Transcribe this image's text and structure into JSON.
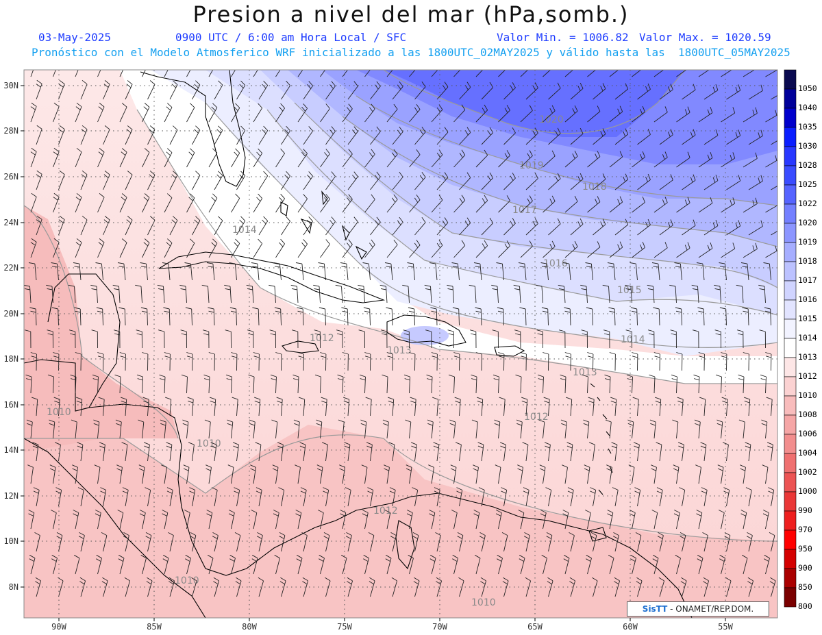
{
  "header": {
    "title": "Presion a nivel del mar (hPa,somb.)",
    "date": "03-May-2025",
    "time": "0900 UTC / 6:00 am Hora Local / SFC",
    "min": "Valor Min. = 1006.82",
    "max": "Valor Max. = 1020.59",
    "forecast": "Pronóstico con el Modelo Atmosferico WRF inicializado a las 1800UTC_02MAY2025 y válido hasta las  1800UTC_05MAY2025"
  },
  "axes": {
    "lat_labels": [
      "30N",
      "28N",
      "26N",
      "24N",
      "22N",
      "20N",
      "18N",
      "16N",
      "14N",
      "12N",
      "10N",
      "8N"
    ],
    "lon_labels": [
      "90W",
      "85W",
      "80W",
      "75W",
      "70W",
      "65W",
      "60W",
      "55W"
    ]
  },
  "colorbar": {
    "levels": [
      "1050",
      "1040",
      "1035",
      "1030",
      "1028",
      "1025",
      "1022",
      "1020",
      "1019",
      "1018",
      "1017",
      "1016",
      "1015",
      "1014",
      "1013",
      "1012",
      "1010",
      "1008",
      "1006",
      "1004",
      "1002",
      "1000",
      "990",
      "970",
      "950",
      "900",
      "850",
      "800"
    ],
    "colors": [
      "#0a0a50",
      "#00009a",
      "#0000cc",
      "#0a1eff",
      "#2838ff",
      "#3a4cff",
      "#5664ff",
      "#7480ff",
      "#8c96ff",
      "#a6aeff",
      "#bcc2ff",
      "#d0d4ff",
      "#e2e4ff",
      "#f2f3ff",
      "#ffffff",
      "#fde6e6",
      "#fbd2d2",
      "#f8bcbc",
      "#f5a6a6",
      "#f28e8e",
      "#ef7070",
      "#ec5454",
      "#ea3838",
      "#ee1f1f",
      "#ff0000",
      "#d40000",
      "#aa0000",
      "#7a0000"
    ]
  },
  "isobar_labels": [
    "1020",
    "1019",
    "1018",
    "1017",
    "1016",
    "1015",
    "1014",
    "1014",
    "1013",
    "1013",
    "1012",
    "1012",
    "1012",
    "1010",
    "1010",
    "1010",
    "1010"
  ],
  "credit": {
    "logo": "SisTT",
    "text": " - ONAMET/REP.DOM."
  }
}
